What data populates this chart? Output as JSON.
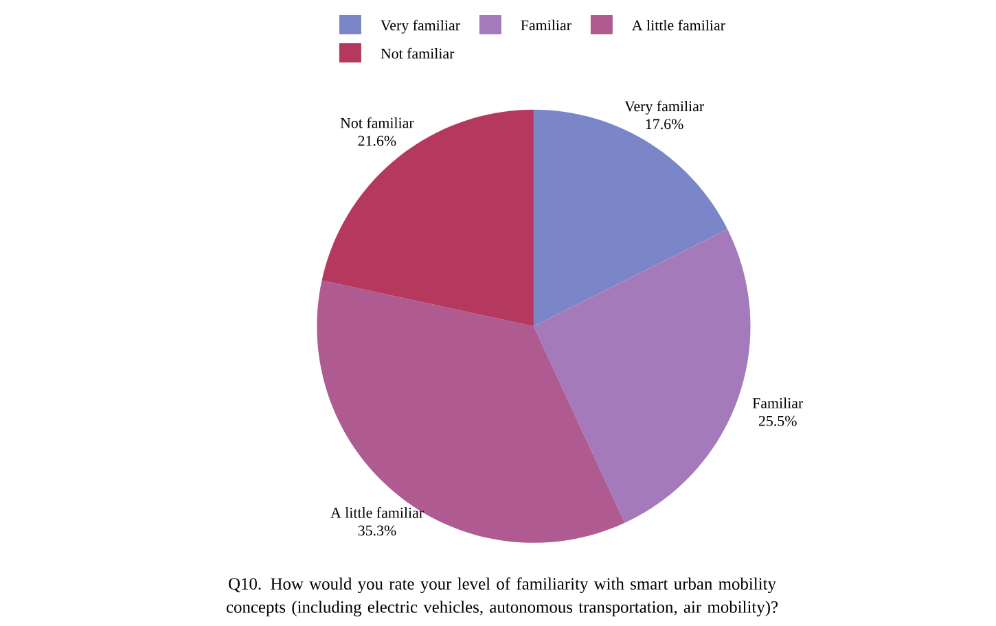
{
  "chart_data": {
    "type": "pie",
    "title": "Q10. How would you rate your level of familiarity with smart urban mobility concepts (including electric vehicles, autonomous transportation, air mobility)?",
    "categories": [
      "Very familiar",
      "Familiar",
      "A little familiar",
      "Not familiar"
    ],
    "values": [
      17.6,
      25.5,
      35.3,
      21.6
    ],
    "value_labels": [
      "17.6%",
      "25.5%",
      "35.3%",
      "21.6%"
    ],
    "colors": [
      "#7b86c9",
      "#a57abb",
      "#b05a92",
      "#b5395f"
    ],
    "legend": "top"
  }
}
